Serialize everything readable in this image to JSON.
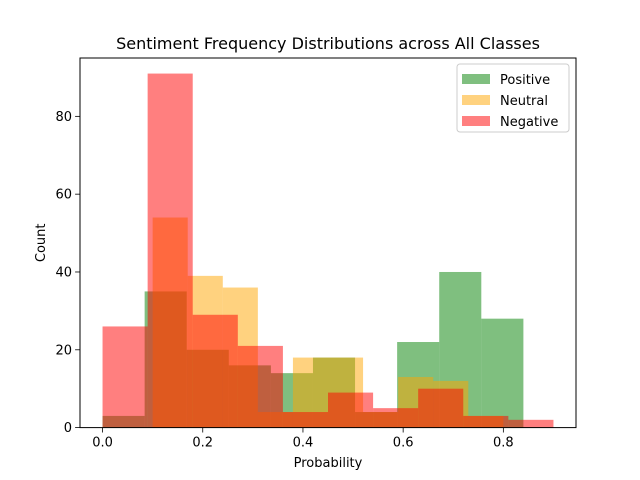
{
  "chart_data": {
    "type": "histogram",
    "title": "Sentiment Frequency Distributions across All Classes",
    "xlabel": "Probability",
    "ylabel": "Count",
    "xlim": [
      -0.045,
      0.945
    ],
    "ylim": [
      0,
      95
    ],
    "xticks": [
      0.0,
      0.2,
      0.4,
      0.6,
      0.8
    ],
    "xtick_labels": [
      "0.0",
      "0.2",
      "0.4",
      "0.6",
      "0.8"
    ],
    "yticks": [
      0,
      20,
      40,
      60,
      80
    ],
    "ytick_labels": [
      "0",
      "20",
      "40",
      "60",
      "80"
    ],
    "grid": false,
    "legend_position": "top-right",
    "series": [
      {
        "name": "Positive",
        "color": "#008000",
        "opacity": 0.5,
        "bin_edges": [
          0.0,
          0.084,
          0.168,
          0.252,
          0.336,
          0.42,
          0.504,
          0.588,
          0.672,
          0.756,
          0.84
        ],
        "counts": [
          3,
          35,
          20,
          16,
          14,
          18,
          4,
          22,
          40,
          28
        ]
      },
      {
        "name": "Neutral",
        "color": "#FFA500",
        "opacity": 0.5,
        "bin_edges": [
          0.1,
          0.17,
          0.24,
          0.31,
          0.38,
          0.45,
          0.52,
          0.59,
          0.66,
          0.73,
          0.8
        ],
        "counts": [
          54,
          39,
          36,
          4,
          18,
          18,
          4,
          13,
          12,
          3
        ]
      },
      {
        "name": "Negative",
        "color": "#FF0000",
        "opacity": 0.5,
        "bin_edges": [
          0.0,
          0.09,
          0.18,
          0.27,
          0.36,
          0.45,
          0.54,
          0.63,
          0.72,
          0.81,
          0.9
        ],
        "counts": [
          26,
          91,
          29,
          21,
          4,
          9,
          5,
          10,
          3,
          2
        ]
      }
    ]
  }
}
